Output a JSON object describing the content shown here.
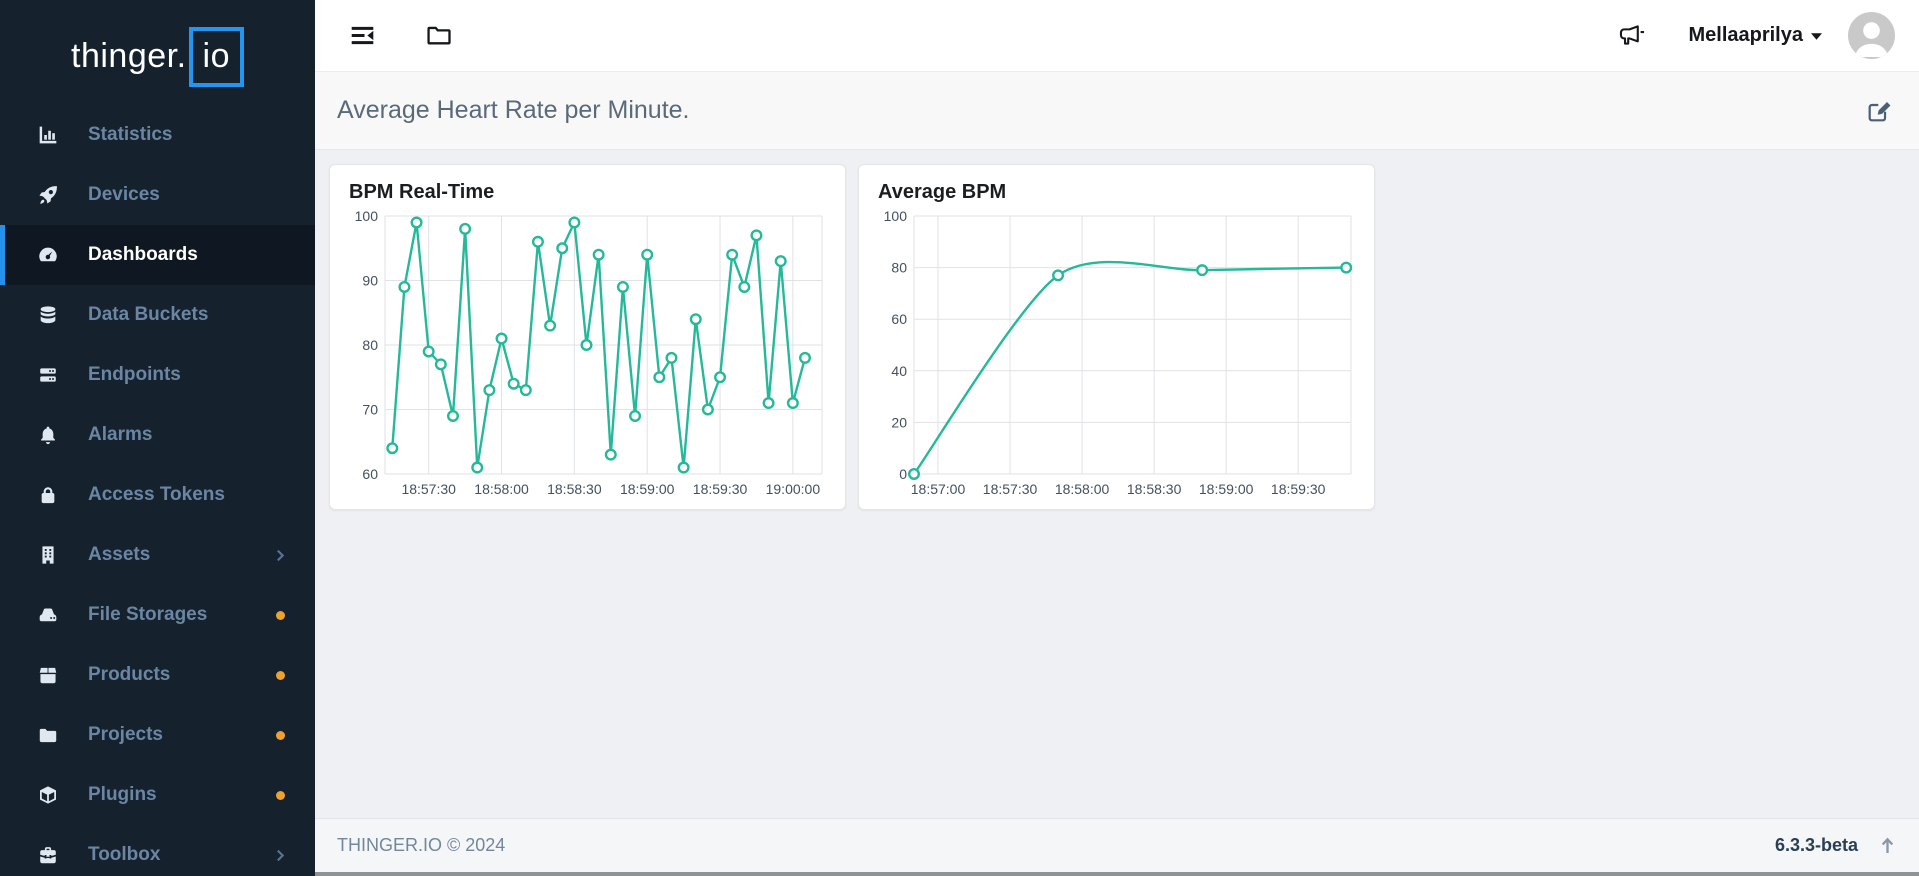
{
  "brand": {
    "logo_prefix": "thinger.",
    "logo_boxed": "io"
  },
  "topbar": {
    "user_name": "Mellaaprilya"
  },
  "page": {
    "title": "Average Heart Rate per Minute."
  },
  "sidebar": {
    "items": [
      {
        "label": "Statistics",
        "icon": "bar-chart-icon"
      },
      {
        "label": "Devices",
        "icon": "rocket-icon"
      },
      {
        "label": "Dashboards",
        "icon": "gauge-icon",
        "active": true
      },
      {
        "label": "Data Buckets",
        "icon": "database-icon"
      },
      {
        "label": "Endpoints",
        "icon": "server-icon"
      },
      {
        "label": "Alarms",
        "icon": "bell-icon"
      },
      {
        "label": "Access Tokens",
        "icon": "lock-icon"
      },
      {
        "label": "Assets",
        "icon": "building-icon",
        "chevron": true
      },
      {
        "label": "File Storages",
        "icon": "hdd-icon",
        "dot": true
      },
      {
        "label": "Products",
        "icon": "box-icon",
        "dot": true
      },
      {
        "label": "Projects",
        "icon": "folder-icon",
        "dot": true
      },
      {
        "label": "Plugins",
        "icon": "cube-icon",
        "dot": true
      },
      {
        "label": "Toolbox",
        "icon": "toolbox-icon",
        "chevron": true
      }
    ]
  },
  "footer": {
    "copyright": "THINGER.IO © 2024",
    "version": "6.3.3-beta"
  },
  "colors": {
    "accent_teal": "#25b99a",
    "sidebar_bg": "#16212e",
    "active_item_bg": "#0e1722",
    "active_border_blue": "#2492eb",
    "logo_blue": "#2596ef",
    "badge_dot_orange": "#eda12f",
    "grid_line": "#dfe2e6"
  },
  "chart_data": [
    {
      "type": "line",
      "title": "BPM Real-Time",
      "x_unit": "seconds after 18:57:00",
      "x_start_s": 15,
      "x_interval_s": 5,
      "values": [
        64,
        89,
        99,
        79,
        77,
        69,
        98,
        61,
        73,
        81,
        74,
        73,
        96,
        83,
        95,
        99,
        80,
        94,
        63,
        89,
        69,
        94,
        75,
        78,
        61,
        84,
        70,
        75,
        94,
        89,
        97,
        71,
        93,
        71,
        78
      ],
      "x_domain_s": [
        12,
        192
      ],
      "x_tick_s": [
        30,
        60,
        90,
        120,
        150,
        180
      ],
      "x_tick_labels": [
        "18:57:30",
        "18:58:00",
        "18:58:30",
        "18:59:00",
        "18:59:30",
        "19:00:00"
      ],
      "y_ticks": [
        60,
        70,
        80,
        90,
        100
      ],
      "ylim": [
        60,
        100
      ],
      "smooth": false,
      "line_color": "#25b99a",
      "grid": true,
      "legend": "none"
    },
    {
      "type": "line",
      "title": "Average BPM",
      "x_unit": "seconds after 18:57:00",
      "points": [
        [
          -10,
          0
        ],
        [
          50,
          77
        ],
        [
          110,
          79
        ],
        [
          170,
          80
        ]
      ],
      "x_domain_s": [
        -10,
        172
      ],
      "x_tick_s": [
        0,
        30,
        60,
        90,
        120,
        150
      ],
      "x_tick_labels": [
        "18:57:00",
        "18:57:30",
        "18:58:00",
        "18:58:30",
        "18:59:00",
        "18:59:30"
      ],
      "y_ticks": [
        0,
        20,
        40,
        60,
        80,
        100
      ],
      "ylim": [
        0,
        100
      ],
      "smooth": true,
      "line_color": "#25b99a",
      "grid": true,
      "legend": "none"
    }
  ]
}
